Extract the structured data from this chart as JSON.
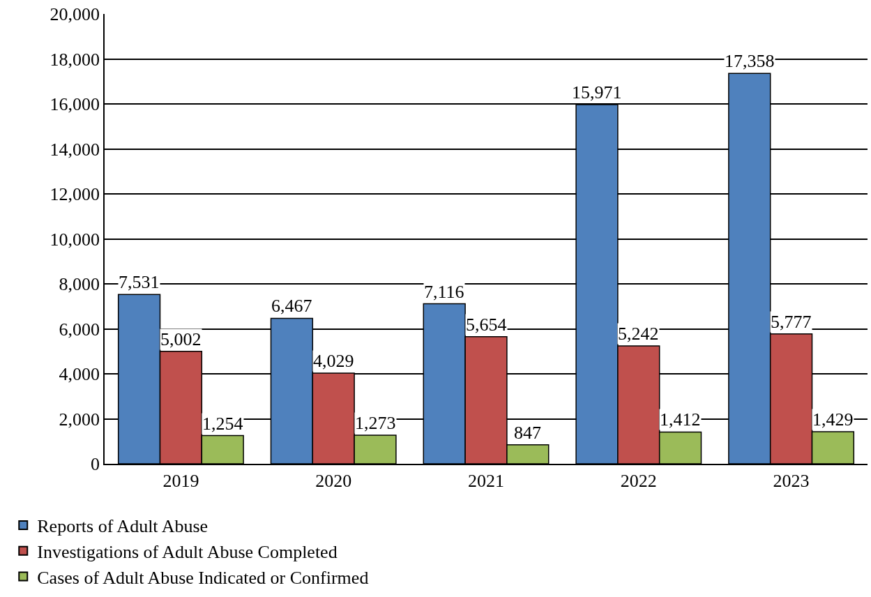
{
  "chart_data": {
    "type": "bar",
    "categories": [
      "2019",
      "2020",
      "2021",
      "2022",
      "2023"
    ],
    "series": [
      {
        "name": "Reports of Adult Abuse",
        "color": "#4f81bd",
        "values": [
          7531,
          6467,
          7116,
          15971,
          17358
        ],
        "value_labels": [
          "7,531",
          "6,467",
          "7,116",
          "15,971",
          "17,358"
        ]
      },
      {
        "name": "Investigations of Adult Abuse Completed",
        "color": "#c0504d",
        "values": [
          5002,
          4029,
          5654,
          5242,
          5777
        ],
        "value_labels": [
          "5,002",
          "4,029",
          "5,654",
          "5,242",
          "5,777"
        ]
      },
      {
        "name": "Cases of Adult Abuse Indicated or Confirmed",
        "color": "#9bbb59",
        "values": [
          1254,
          1273,
          847,
          1412,
          1429
        ],
        "value_labels": [
          "1,254",
          "1,273",
          "847",
          "1,412",
          "1,429"
        ]
      }
    ],
    "ylim": [
      0,
      20000
    ],
    "yticks": [
      {
        "value": 0,
        "label": "0"
      },
      {
        "value": 2000,
        "label": "2,000"
      },
      {
        "value": 4000,
        "label": "4,000"
      },
      {
        "value": 6000,
        "label": "6,000"
      },
      {
        "value": 8000,
        "label": "8,000"
      },
      {
        "value": 10000,
        "label": "10,000"
      },
      {
        "value": 12000,
        "label": "12,000"
      },
      {
        "value": 14000,
        "label": "14,000"
      },
      {
        "value": 16000,
        "label": "16,000"
      },
      {
        "value": 18000,
        "label": "18,000"
      },
      {
        "value": 20000,
        "label": "20,000"
      }
    ],
    "grid": "y",
    "legend": "bottom"
  }
}
